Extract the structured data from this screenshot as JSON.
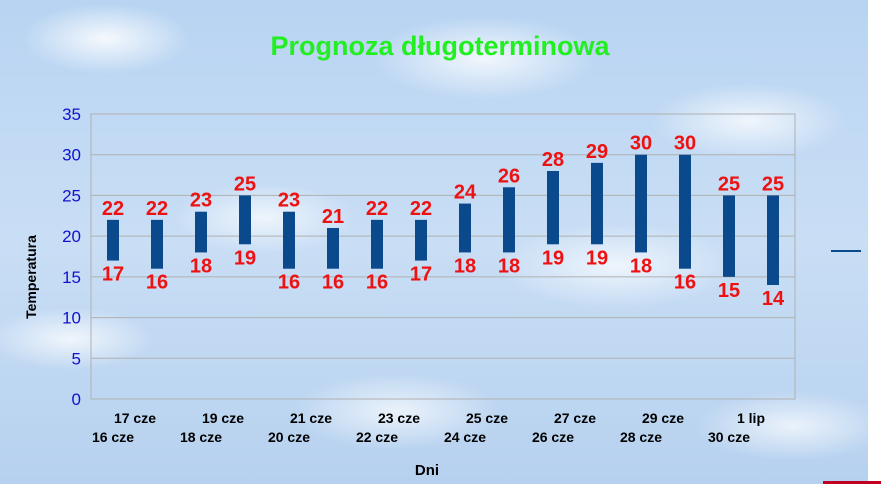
{
  "chart_data": {
    "type": "bar",
    "subtype": "floating-range",
    "title": "Prognoza długoterminowa",
    "xlabel": "Dni",
    "ylabel": "Temperatura",
    "ylim": [
      0,
      35
    ],
    "yticks": [
      "0",
      "5",
      "10",
      "15",
      "20",
      "25",
      "30",
      "35"
    ],
    "grid": true,
    "legend": "right",
    "categories": [
      "16 cze",
      "17 cze",
      "18 cze",
      "19 cze",
      "20 cze",
      "21 cze",
      "22 cze",
      "23 cze",
      "24 cze",
      "25 cze",
      "26 cze",
      "27 cze",
      "28 cze",
      "29 cze",
      "30 cze",
      "1 lip"
    ],
    "series": [
      {
        "values_low": [
          17,
          16,
          18,
          19,
          16,
          16,
          16,
          17,
          18,
          18,
          19,
          19,
          18,
          16,
          15,
          14
        ],
        "values_high": [
          22,
          22,
          23,
          25,
          23,
          21,
          22,
          22,
          24,
          26,
          28,
          29,
          30,
          30,
          25,
          25
        ]
      }
    ],
    "colors": {
      "title": "#22ee22",
      "bar": "#0a4a8c",
      "data_label": "#ee1111",
      "tick_label": "#1111cc",
      "grid": "#b0b0b0"
    }
  }
}
